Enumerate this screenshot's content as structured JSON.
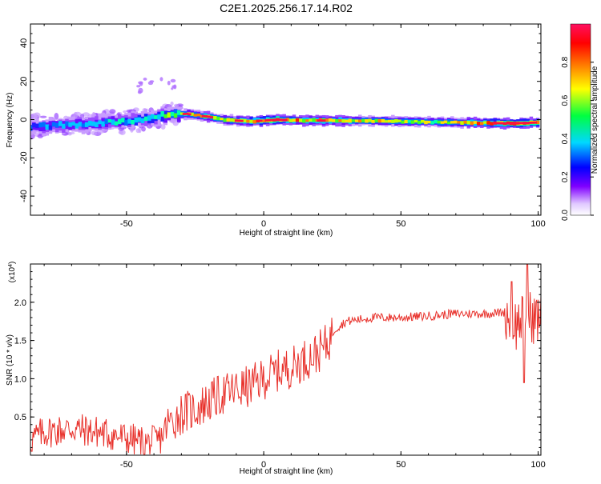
{
  "title": "C2E1.2025.256.17.14.R02",
  "colors": {
    "snr_line": "#e8312b",
    "axis": "#000000"
  },
  "chart_data": [
    {
      "type": "heatmap",
      "title": "C2E1.2025.256.17.14.R02",
      "xlabel": "Height of straight line (km)",
      "ylabel": "Frequency (Hz)",
      "xlim": [
        -85,
        101
      ],
      "ylim": [
        -50,
        50
      ],
      "xticks": [
        -50,
        0,
        50,
        100
      ],
      "yticks": [
        -40,
        -20,
        0,
        20,
        40
      ],
      "colorbar": {
        "label": "Normalized spectral amplitude",
        "range": [
          0,
          1
        ],
        "ticks": [
          "0.0",
          "0.2",
          "0.4",
          "0.6",
          "0.8"
        ],
        "colormap": [
          "#ffffff",
          "#e0c8ff",
          "#8000ff",
          "#0000ff",
          "#00d8ff",
          "#00ff40",
          "#ffff00",
          "#ff8000",
          "#ff0000",
          "#ff1060"
        ]
      },
      "ridge": {
        "x": [
          -85,
          -75,
          -60,
          -45,
          -35,
          -28,
          -20,
          -15,
          -5,
          5,
          15,
          30,
          50,
          70,
          90,
          100
        ],
        "freq_hz": [
          -4,
          -3,
          -2,
          0,
          2.5,
          3,
          1.5,
          0,
          -1,
          0,
          -0.5,
          -0.5,
          -1,
          -1.5,
          -2,
          -1.5
        ],
        "amplitude": [
          0.4,
          0.45,
          0.5,
          0.55,
          0.65,
          0.75,
          0.8,
          0.7,
          0.85,
          0.95,
          0.8,
          0.8,
          0.7,
          0.75,
          0.95,
          0.95
        ]
      }
    },
    {
      "type": "line",
      "xlabel": "Height of straight line (km)",
      "ylabel": "SNR (10 * v/v)",
      "yscale_label": "(x10",
      "yscale_exp": "4",
      "yscale_close": ")",
      "xlim": [
        -85,
        101
      ],
      "ylim": [
        0,
        2.5
      ],
      "xticks": [
        -50,
        0,
        50,
        100
      ],
      "yticks": [
        "0.5",
        "1.0",
        "1.5",
        "2.0"
      ],
      "series": [
        {
          "name": "SNR",
          "x": [
            -85,
            -80,
            -70,
            -60,
            -50,
            -42,
            -38,
            -35,
            -30,
            -25,
            -20,
            -15,
            -10,
            -5,
            0,
            5,
            10,
            15,
            20,
            23,
            26,
            30,
            40,
            50,
            60,
            70,
            80,
            88,
            92,
            95,
            98,
            101
          ],
          "values": [
            0.2,
            0.3,
            0.35,
            0.3,
            0.22,
            0.15,
            0.2,
            0.4,
            0.55,
            0.6,
            0.7,
            0.8,
            0.85,
            0.9,
            1.0,
            1.1,
            1.15,
            1.25,
            1.35,
            1.45,
            1.65,
            1.75,
            1.8,
            1.8,
            1.82,
            1.85,
            1.85,
            1.87,
            1.7,
            1.85,
            1.8,
            1.78
          ]
        }
      ]
    }
  ]
}
